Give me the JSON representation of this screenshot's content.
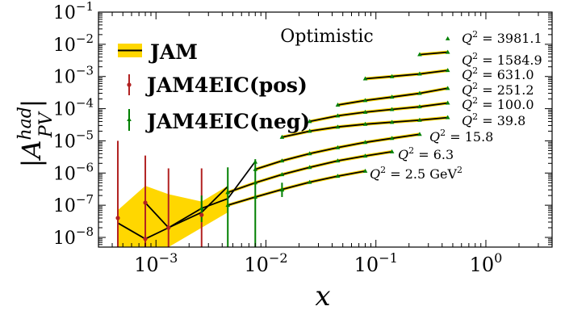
{
  "chart_data": {
    "type": "line",
    "title": "",
    "annotation": "Optimistic",
    "xlabel": "x",
    "ylabel": "|A_PV^had|",
    "xscale": "log",
    "yscale": "log",
    "xlim": [
      0.0003,
      4.0
    ],
    "ylim": [
      5e-09,
      0.1
    ],
    "x_ticks": [
      {
        "value": 0.001,
        "base": "10",
        "exp": "−3"
      },
      {
        "value": 0.01,
        "base": "10",
        "exp": "−2"
      },
      {
        "value": 0.1,
        "base": "10",
        "exp": "−1"
      },
      {
        "value": 1.0,
        "base": "10",
        "exp": "0"
      }
    ],
    "y_ticks": [
      {
        "value": 1e-08,
        "base": "10",
        "exp": "−8"
      },
      {
        "value": 1e-07,
        "base": "10",
        "exp": "−7"
      },
      {
        "value": 1e-06,
        "base": "10",
        "exp": "−6"
      },
      {
        "value": 1e-05,
        "base": "10",
        "exp": "−5"
      },
      {
        "value": 0.0001,
        "base": "10",
        "exp": "−4"
      },
      {
        "value": 0.001,
        "base": "10",
        "exp": "−3"
      },
      {
        "value": 0.01,
        "base": "10",
        "exp": "−2"
      },
      {
        "value": 0.1,
        "base": "10",
        "exp": "−1"
      }
    ],
    "legend": {
      "placement": "top-left",
      "entries": [
        {
          "label": "JAM",
          "style": "band-line",
          "color": "#000000",
          "band_color": "#FFD700"
        },
        {
          "label": "JAM4EIC(pos)",
          "style": "errorbar",
          "color": "#B22222"
        },
        {
          "label": "JAM4EIC(neg)",
          "style": "errorbar",
          "color": "#008000"
        }
      ]
    },
    "colors": {
      "band": "#FFD700",
      "line": "#000000",
      "pos": "#B22222",
      "neg": "#008000"
    },
    "band": {
      "x": [
        0.00045,
        0.0008,
        0.0013,
        0.0026,
        0.0045
      ],
      "lower": [
        4e-09,
        4e-09,
        5e-09,
        2e-08,
        6e-08
      ],
      "upper": [
        7e-08,
        4e-07,
        2.2e-07,
        1.3e-07,
        4e-07
      ]
    },
    "series": [
      {
        "label": "Q^2 = 2.5 GeV^2",
        "label_parts": {
          "prefix": "Q",
          "sup": "2",
          "text": " = 2.5 GeV",
          "sup2": "2"
        },
        "x": [
          0.0045,
          0.008,
          0.014,
          0.025,
          0.045,
          0.08
        ],
        "y": [
          1e-07,
          1.8e-07,
          3.1e-07,
          5.2e-07,
          8e-07,
          1.15e-06
        ]
      },
      {
        "label": "Q^2 = 6.3",
        "label_parts": {
          "prefix": "Q",
          "sup": "2",
          "text": " = 6.3"
        },
        "x": [
          0.0045,
          0.008,
          0.014,
          0.025,
          0.045,
          0.08,
          0.14
        ],
        "y": [
          2.5e-07,
          5e-07,
          9e-07,
          1.5e-06,
          2.4e-06,
          3.4e-06,
          4.6e-06
        ]
      },
      {
        "label": "Q^2 = 15.8",
        "label_parts": {
          "prefix": "Q",
          "sup": "2",
          "text": " = 15.8"
        },
        "x": [
          0.008,
          0.014,
          0.025,
          0.045,
          0.08,
          0.14,
          0.25
        ],
        "y": [
          1.3e-06,
          2.4e-06,
          4e-06,
          6.2e-06,
          9e-06,
          1.2e-05,
          1.6e-05
        ]
      },
      {
        "label": "Q^2 = 39.8",
        "label_parts": {
          "prefix": "Q",
          "sup": "2",
          "text": " = 39.8"
        },
        "x": [
          0.014,
          0.025,
          0.045,
          0.08,
          0.14,
          0.25,
          0.45
        ],
        "y": [
          1.3e-05,
          2e-05,
          2.7e-05,
          3.3e-05,
          3.8e-05,
          4.4e-05,
          5.3e-05
        ]
      },
      {
        "label": "Q^2 = 100.0",
        "label_parts": {
          "prefix": "Q",
          "sup": "2",
          "text": " = 100.0"
        },
        "x": [
          0.025,
          0.045,
          0.08,
          0.14,
          0.25,
          0.45
        ],
        "y": [
          4e-05,
          6e-05,
          7.8e-05,
          9.5e-05,
          0.000115,
          0.00015
        ]
      },
      {
        "label": "Q^2 = 251.2",
        "label_parts": {
          "prefix": "Q",
          "sup": "2",
          "text": " = 251.2"
        },
        "x": [
          0.045,
          0.08,
          0.14,
          0.25,
          0.45
        ],
        "y": [
          0.00013,
          0.00018,
          0.00023,
          0.0003,
          0.00043
        ]
      },
      {
        "label": "Q^2 = 631.0",
        "label_parts": {
          "prefix": "Q",
          "sup": "2",
          "text": " = 631.0"
        },
        "x": [
          0.08,
          0.14,
          0.25,
          0.45
        ],
        "y": [
          0.00085,
          0.001,
          0.0012,
          0.00155
        ]
      },
      {
        "label": "Q^2 = 1584.9",
        "label_parts": {
          "prefix": "Q",
          "sup": "2",
          "text": " = 1584.9"
        },
        "x": [
          0.25,
          0.45
        ],
        "y": [
          0.0048,
          0.0057
        ]
      },
      {
        "label": "Q^2 = 3981.1",
        "label_parts": {
          "prefix": "Q",
          "sup": "2",
          "text": " = 3981.1"
        },
        "x": [
          0.45
        ],
        "y": [
          0.015
        ]
      }
    ],
    "low_x_line": {
      "x": [
        0.00045,
        0.0008,
        0.0013,
        0.0026,
        0.0045
      ],
      "y": [
        2.8e-08,
        9e-09,
        2e-08,
        6e-08,
        3.8e-07
      ]
    },
    "low_x_line_2": {
      "x": [
        0.0008,
        0.0013,
        0.0026,
        0.0045,
        0.008
      ],
      "y": [
        1.2e-07,
        2e-08,
        8e-08,
        1.6e-07,
        2.3e-06
      ]
    },
    "pos_points": [
      {
        "x": 0.00045,
        "y": 4e-08,
        "lo": 5e-09,
        "hi": 1e-05
      },
      {
        "x": 0.0008,
        "y": 1.2e-07,
        "lo": 5e-09,
        "hi": 3.5e-06
      },
      {
        "x": 0.0008,
        "y": 9e-09,
        "lo": 5e-09,
        "hi": 1.5e-08
      },
      {
        "x": 0.0013,
        "y": 2e-08,
        "lo": 5e-09,
        "hi": 1.4e-06
      },
      {
        "x": 0.0026,
        "y": 5e-08,
        "lo": 5e-09,
        "hi": 1.4e-06
      }
    ],
    "neg_points": [
      {
        "x": 0.0026,
        "y": 8e-08,
        "lo": 3e-08,
        "hi": 2e-07
      },
      {
        "x": 0.0045,
        "y": 2.5e-07,
        "lo": 5e-09,
        "hi": 1.5e-06
      },
      {
        "x": 0.008,
        "y": 2.2e-06,
        "lo": 5e-09,
        "hi": 2.7e-06
      },
      {
        "x": 0.014,
        "y": 3e-07,
        "lo": 1.8e-07,
        "hi": 5e-07
      }
    ]
  }
}
